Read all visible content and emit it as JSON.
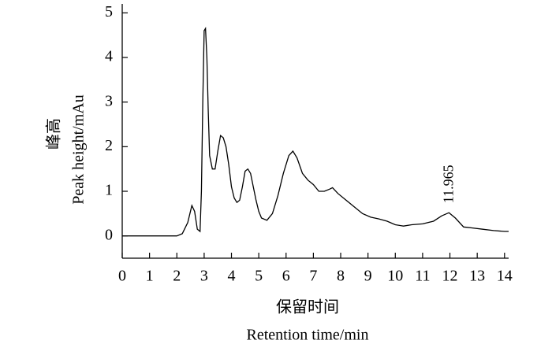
{
  "chart_data": {
    "type": "line",
    "x_label": "保留时间",
    "x_label_en": "Retention time/min",
    "y_label": "峰高",
    "y_label_en": "Peak height/mAu",
    "x": [
      0,
      2.0,
      2.2,
      2.4,
      2.55,
      2.65,
      2.75,
      2.85,
      2.9,
      2.95,
      3.0,
      3.05,
      3.1,
      3.15,
      3.2,
      3.3,
      3.4,
      3.5,
      3.6,
      3.7,
      3.8,
      3.9,
      4.0,
      4.1,
      4.2,
      4.3,
      4.4,
      4.5,
      4.6,
      4.7,
      4.8,
      4.9,
      5.0,
      5.1,
      5.3,
      5.5,
      5.7,
      5.9,
      6.1,
      6.25,
      6.4,
      6.6,
      6.8,
      7.0,
      7.2,
      7.4,
      7.6,
      7.7,
      7.9,
      8.2,
      8.5,
      8.8,
      9.1,
      9.4,
      9.7,
      10.0,
      10.3,
      10.6,
      11.0,
      11.4,
      11.7,
      11.965,
      12.2,
      12.5,
      12.8,
      13.2,
      13.6,
      14.0,
      14.15
    ],
    "series": [
      {
        "color": "#000000",
        "values": [
          0,
          0,
          0.05,
          0.3,
          0.68,
          0.55,
          0.15,
          0.1,
          1.0,
          3.0,
          4.6,
          4.65,
          4.0,
          2.8,
          1.8,
          1.5,
          1.5,
          1.9,
          2.25,
          2.2,
          2.0,
          1.6,
          1.1,
          0.85,
          0.75,
          0.8,
          1.1,
          1.45,
          1.5,
          1.4,
          1.1,
          0.8,
          0.55,
          0.4,
          0.35,
          0.5,
          0.9,
          1.4,
          1.8,
          1.9,
          1.75,
          1.4,
          1.25,
          1.15,
          1.0,
          1.0,
          1.05,
          1.08,
          0.95,
          0.8,
          0.65,
          0.5,
          0.42,
          0.38,
          0.33,
          0.25,
          0.22,
          0.25,
          0.27,
          0.33,
          0.45,
          0.52,
          0.4,
          0.2,
          0.18,
          0.15,
          0.12,
          0.1,
          0.1
        ]
      }
    ],
    "annotations": [
      {
        "label": "11.965",
        "x": 11.965,
        "y": 0.52
      }
    ],
    "xlim": [
      0,
      14.15
    ],
    "ylim": [
      -0.5,
      5.2
    ],
    "xticks": [
      0,
      1,
      2,
      3,
      4,
      5,
      6,
      7,
      8,
      9,
      10,
      11,
      12,
      13,
      14
    ],
    "yticks": [
      0,
      1,
      2,
      3,
      4,
      5
    ],
    "grid": false
  }
}
